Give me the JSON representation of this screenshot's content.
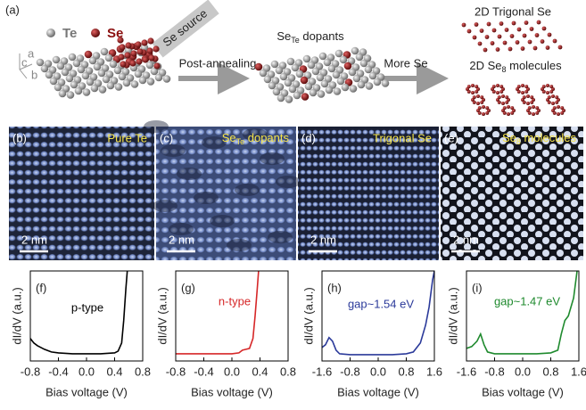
{
  "panel_a": {
    "label": "(a)",
    "legend_te": "Te",
    "legend_se": "Se",
    "source": "Se source",
    "axes": [
      "a",
      "c",
      "b"
    ],
    "arrow1": "Post-annealing",
    "dopants": {
      "main": "Se",
      "sub": "Te",
      "rest": " dopants"
    },
    "arrow2": "More Se",
    "trigonal": "2D Trigonal Se",
    "molecules": {
      "main": "2D Se",
      "sub": "8",
      "rest": " molecules"
    }
  },
  "stm": [
    {
      "label": "(b)",
      "title": "Pure Te",
      "scale": "2 nm"
    },
    {
      "label": "(c)",
      "title": {
        "main": "Se",
        "sub": "Te",
        "rest": " dopants"
      },
      "scale": "2 nm"
    },
    {
      "label": "(d)",
      "title": "Trigonal Se",
      "scale": "2 nm"
    },
    {
      "label": "(e)",
      "title": {
        "main": "Se",
        "sub": "8",
        "rest": " molecules"
      },
      "scale": "2 nm"
    }
  ],
  "chart_data": [
    {
      "type": "line",
      "panel": "(f)",
      "annotation": "p-type",
      "color": "#000000",
      "xlabel": "Bias voltage (V)",
      "ylabel": "dI/dV (a.u.)",
      "xlim": [
        -0.8,
        0.8
      ],
      "ylim": [
        0,
        1
      ],
      "xticks": [
        -0.8,
        -0.4,
        {
          "value": 0,
          "label": "0.0"
        },
        0.4,
        0.8
      ],
      "x": [
        -0.8,
        -0.75,
        -0.7,
        -0.6,
        -0.5,
        -0.4,
        -0.2,
        0,
        0.2,
        0.4,
        0.45,
        0.5,
        0.53,
        0.56,
        0.58
      ],
      "values": [
        0.25,
        0.2,
        0.17,
        0.13,
        0.1,
        0.09,
        0.08,
        0.08,
        0.08,
        0.09,
        0.11,
        0.2,
        0.45,
        0.8,
        1.0
      ]
    },
    {
      "type": "line",
      "panel": "(g)",
      "annotation": "n-type",
      "color": "#d62728",
      "xlabel": "Bias voltage (V)",
      "ylabel": "dI/dV (a.u.)",
      "xlim": [
        -0.8,
        0.8
      ],
      "ylim": [
        0,
        1
      ],
      "xticks": [
        -0.8,
        -0.4,
        {
          "value": 0,
          "label": "0.0"
        },
        0.4,
        0.8
      ],
      "x": [
        -0.8,
        -0.6,
        -0.4,
        -0.2,
        0,
        0.1,
        0.15,
        0.2,
        0.25,
        0.3,
        0.33,
        0.36,
        0.38
      ],
      "values": [
        0.08,
        0.08,
        0.08,
        0.08,
        0.08,
        0.09,
        0.12,
        0.13,
        0.14,
        0.25,
        0.5,
        0.8,
        1.0
      ]
    },
    {
      "type": "line",
      "panel": "(h)",
      "annotation": "gap~1.54 eV",
      "color": "#2b3a9a",
      "xlabel": "Bias voltage (V)",
      "ylabel": "dI/dV (a.u.)",
      "xlim": [
        -1.6,
        1.6
      ],
      "ylim": [
        0,
        1
      ],
      "xticks": [
        -1.6,
        -0.8,
        {
          "value": 0,
          "label": "0.0"
        },
        0.8,
        1.6
      ],
      "x": [
        -1.6,
        -1.5,
        -1.4,
        -1.3,
        -1.2,
        -1.1,
        -0.8,
        -0.4,
        0,
        0.4,
        0.8,
        1.0,
        1.2,
        1.35,
        1.45,
        1.55,
        1.6
      ],
      "values": [
        0.15,
        0.18,
        0.26,
        0.22,
        0.12,
        0.08,
        0.07,
        0.07,
        0.07,
        0.07,
        0.08,
        0.1,
        0.2,
        0.4,
        0.6,
        0.9,
        1.0
      ]
    },
    {
      "type": "line",
      "panel": "(i)",
      "annotation": "gap~1.47 eV",
      "color": "#1f8a2e",
      "xlabel": "Bias voltage (V)",
      "ylabel": "dI/dV (a.u.)",
      "xlim": [
        -1.6,
        1.6
      ],
      "ylim": [
        0,
        1
      ],
      "xticks": [
        -1.6,
        -0.8,
        {
          "value": 0,
          "label": "0.0"
        },
        0.8,
        1.6
      ],
      "x": [
        -1.6,
        -1.45,
        -1.3,
        -1.2,
        -1.1,
        -1.0,
        -0.8,
        -0.4,
        0,
        0.4,
        0.8,
        1.0,
        1.1,
        1.2,
        1.3,
        1.45,
        1.55
      ],
      "values": [
        0.14,
        0.16,
        0.22,
        0.3,
        0.18,
        0.1,
        0.08,
        0.08,
        0.08,
        0.08,
        0.09,
        0.12,
        0.3,
        0.45,
        0.5,
        0.7,
        1.0
      ]
    }
  ]
}
